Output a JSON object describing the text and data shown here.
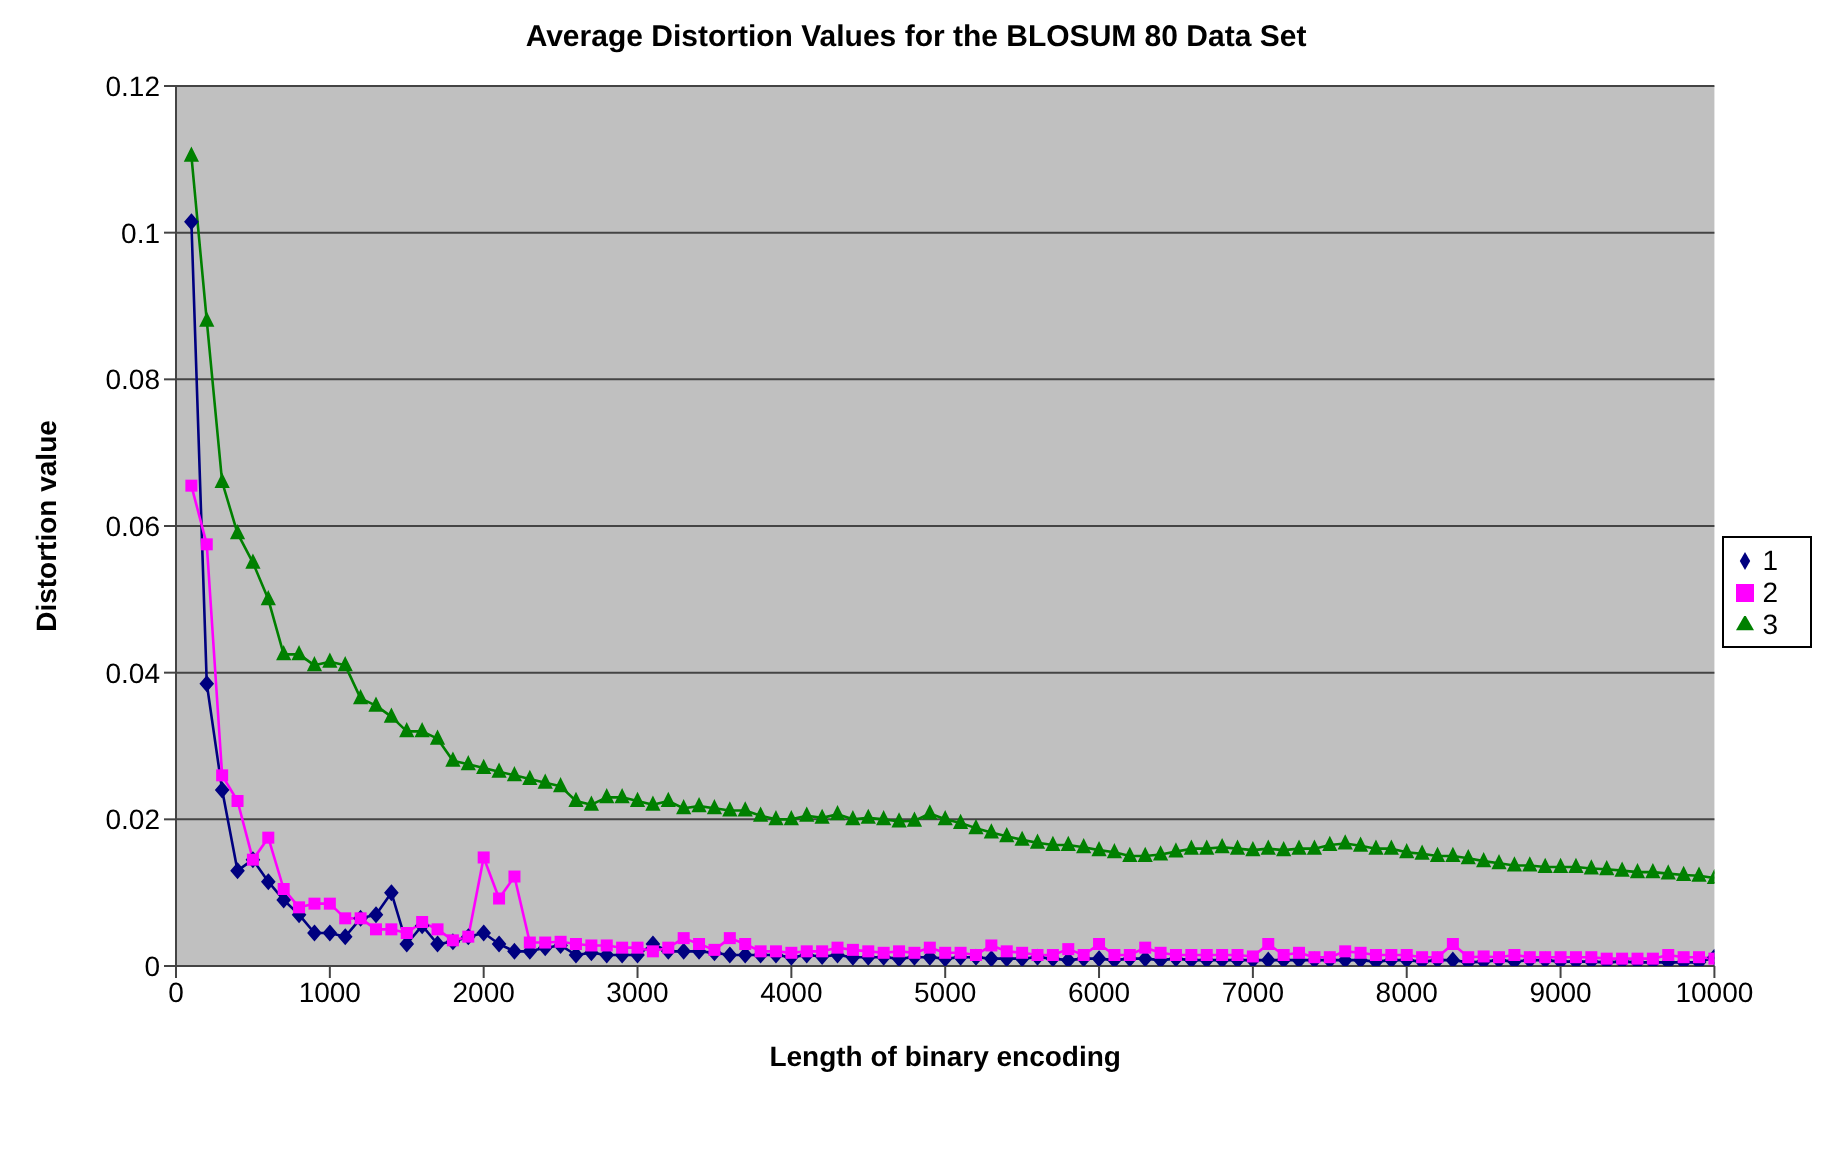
{
  "chart_data": {
    "type": "line",
    "title": "Average Distortion Values for the BLOSUM 80 Data Set",
    "xlabel": "Length of binary encoding",
    "ylabel": "Distortion value",
    "x": [
      100,
      200,
      300,
      400,
      500,
      600,
      700,
      800,
      900,
      1000,
      1100,
      1200,
      1300,
      1400,
      1500,
      1600,
      1700,
      1800,
      1900,
      2000,
      2100,
      2200,
      2300,
      2400,
      2500,
      2600,
      2700,
      2800,
      2900,
      3000,
      3100,
      3200,
      3300,
      3400,
      3500,
      3600,
      3700,
      3800,
      3900,
      4000,
      4100,
      4200,
      4300,
      4400,
      4500,
      4600,
      4700,
      4800,
      4900,
      5000,
      5100,
      5200,
      5300,
      5400,
      5500,
      5600,
      5700,
      5800,
      5900,
      6000,
      6100,
      6200,
      6300,
      6400,
      6500,
      6600,
      6700,
      6800,
      6900,
      7000,
      7100,
      7200,
      7300,
      7400,
      7500,
      7600,
      7700,
      7800,
      7900,
      8000,
      8100,
      8200,
      8300,
      8400,
      8500,
      8600,
      8700,
      8800,
      8900,
      9000,
      9100,
      9200,
      9300,
      9400,
      9500,
      9600,
      9700,
      9800,
      9900,
      10000
    ],
    "series": [
      {
        "name": "1",
        "color": "#000080",
        "marker": "diamond",
        "values": [
          0.1015,
          0.0385,
          0.024,
          0.013,
          0.0145,
          0.0115,
          0.009,
          0.007,
          0.0045,
          0.0045,
          0.004,
          0.0065,
          0.007,
          0.01,
          0.003,
          0.0055,
          0.003,
          0.0033,
          0.004,
          0.0045,
          0.003,
          0.002,
          0.002,
          0.0025,
          0.0028,
          0.0015,
          0.0018,
          0.0015,
          0.0015,
          0.0015,
          0.003,
          0.002,
          0.002,
          0.002,
          0.0018,
          0.0015,
          0.0015,
          0.0015,
          0.0015,
          0.0012,
          0.0015,
          0.0013,
          0.0015,
          0.0012,
          0.0012,
          0.0012,
          0.001,
          0.0012,
          0.0012,
          0.001,
          0.0012,
          0.0012,
          0.001,
          0.001,
          0.001,
          0.0012,
          0.001,
          0.0008,
          0.001,
          0.001,
          0.0008,
          0.001,
          0.001,
          0.0008,
          0.001,
          0.0008,
          0.0008,
          0.0008,
          0.0008,
          0.0008,
          0.0008,
          0.0008,
          0.0008,
          0.0008,
          0.0008,
          0.0008,
          0.0008,
          0.0006,
          0.0008,
          0.0008,
          0.0006,
          0.0008,
          0.0008,
          0.0005,
          0.0006,
          0.0008,
          0.0006,
          0.0008,
          0.0008,
          0.0006,
          0.0006,
          0.0006,
          0.0005,
          0.0006,
          0.0005,
          0.0005,
          0.0005,
          0.0005,
          0.0005,
          0.0012
        ]
      },
      {
        "name": "2",
        "color": "#ff00ff",
        "marker": "square",
        "values": [
          0.0655,
          0.0575,
          0.026,
          0.0225,
          0.0145,
          0.0175,
          0.0105,
          0.008,
          0.0085,
          0.0085,
          0.0065,
          0.0065,
          0.005,
          0.005,
          0.0045,
          0.006,
          0.005,
          0.0035,
          0.004,
          0.0148,
          0.0092,
          0.0122,
          0.0032,
          0.0032,
          0.0033,
          0.003,
          0.0028,
          0.0028,
          0.0025,
          0.0025,
          0.002,
          0.0025,
          0.0038,
          0.003,
          0.0022,
          0.0038,
          0.003,
          0.002,
          0.002,
          0.0018,
          0.002,
          0.002,
          0.0025,
          0.0022,
          0.002,
          0.0018,
          0.002,
          0.0018,
          0.0025,
          0.0018,
          0.0018,
          0.0015,
          0.0028,
          0.002,
          0.0018,
          0.0015,
          0.0015,
          0.0023,
          0.0015,
          0.003,
          0.0015,
          0.0015,
          0.0025,
          0.0018,
          0.0015,
          0.0015,
          0.0015,
          0.0015,
          0.0015,
          0.0013,
          0.003,
          0.0015,
          0.0018,
          0.0012,
          0.0012,
          0.002,
          0.0018,
          0.0015,
          0.0015,
          0.0015,
          0.0012,
          0.0012,
          0.003,
          0.0012,
          0.0013,
          0.0012,
          0.0015,
          0.0012,
          0.0012,
          0.0012,
          0.0012,
          0.0012,
          0.001,
          0.001,
          0.001,
          0.001,
          0.0015,
          0.0012,
          0.0012,
          0.001
        ]
      },
      {
        "name": "3",
        "color": "#008000",
        "marker": "triangle",
        "values": [
          0.1105,
          0.088,
          0.066,
          0.059,
          0.055,
          0.05,
          0.0425,
          0.0425,
          0.041,
          0.0415,
          0.041,
          0.0365,
          0.0355,
          0.034,
          0.032,
          0.032,
          0.031,
          0.028,
          0.0275,
          0.027,
          0.0265,
          0.026,
          0.0255,
          0.025,
          0.0245,
          0.0225,
          0.022,
          0.023,
          0.023,
          0.0225,
          0.022,
          0.0225,
          0.0215,
          0.0218,
          0.0215,
          0.0212,
          0.0212,
          0.0205,
          0.02,
          0.02,
          0.0205,
          0.0202,
          0.0207,
          0.02,
          0.0202,
          0.02,
          0.0197,
          0.0198,
          0.0208,
          0.02,
          0.0195,
          0.0188,
          0.0182,
          0.0177,
          0.0172,
          0.0168,
          0.0165,
          0.0165,
          0.0162,
          0.0158,
          0.0155,
          0.015,
          0.015,
          0.0152,
          0.0156,
          0.016,
          0.016,
          0.0162,
          0.016,
          0.0158,
          0.016,
          0.0158,
          0.016,
          0.016,
          0.0165,
          0.0167,
          0.0164,
          0.016,
          0.016,
          0.0155,
          0.0153,
          0.015,
          0.015,
          0.0147,
          0.0143,
          0.014,
          0.0137,
          0.0137,
          0.0135,
          0.0135,
          0.0135,
          0.0133,
          0.0132,
          0.013,
          0.0128,
          0.0128,
          0.0126,
          0.0124,
          0.0123,
          0.012
        ]
      }
    ],
    "xlim": [
      0,
      10000
    ],
    "xticks": [
      0,
      1000,
      2000,
      3000,
      4000,
      5000,
      6000,
      7000,
      8000,
      9000,
      10000
    ],
    "ylim": [
      0,
      0.12
    ],
    "yticks": [
      0,
      0.02,
      0.04,
      0.06,
      0.08,
      0.1,
      0.12
    ],
    "grid": "y",
    "legend": "right",
    "line_style": "solid"
  }
}
